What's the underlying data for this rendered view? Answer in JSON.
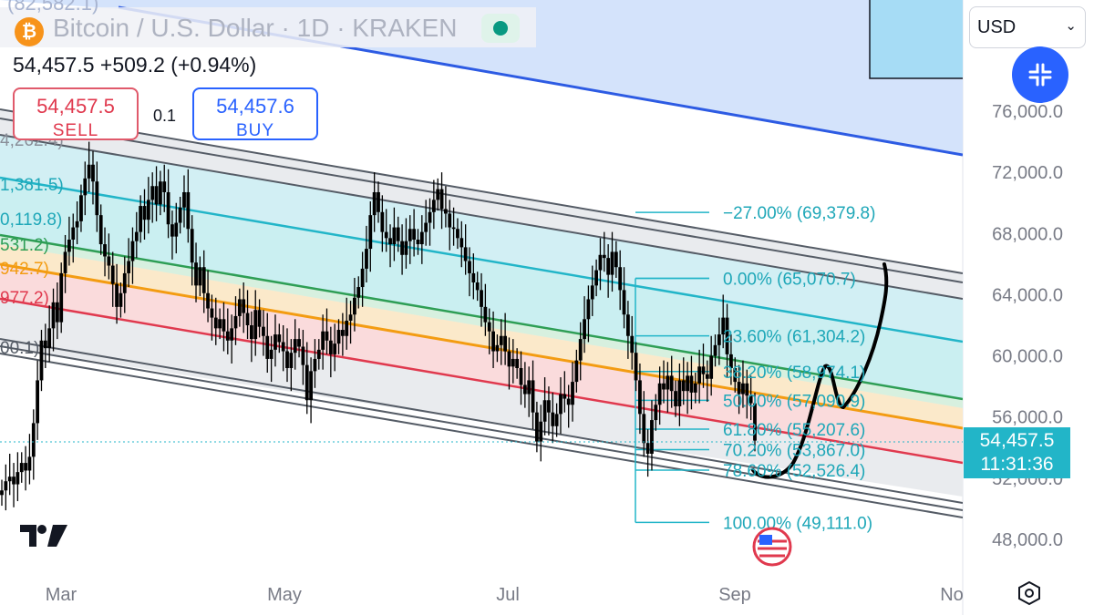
{
  "header": {
    "top_clipped": "(82,582.1)",
    "coin_glyph": "₿",
    "title": "Bitcoin / U.S. Dollar · 1D · KRAKEN",
    "quote": "54,457.5 +509.2 (+0.94%)"
  },
  "trade": {
    "sell_price": "54,457.5",
    "sell_label": "SELL",
    "buy_price": "54,457.6",
    "buy_label": "BUY",
    "spread": "0.1"
  },
  "toolbar": {
    "currency": "USD",
    "chevron": "⌄"
  },
  "colors": {
    "accent": "#2962ff",
    "teal": "#22b5c8",
    "sell": "#e0394e"
  },
  "chart_data": {
    "type": "candlestick",
    "symbol": "BTCUSD",
    "x_tick_labels": [
      "Mar",
      "May",
      "Jul",
      "Sep",
      "No"
    ],
    "y_ticks": [
      76000,
      72000,
      68000,
      64000,
      60000,
      56000,
      52000,
      48000
    ],
    "y_tick_labels": [
      "76,000.0",
      "72,000.0",
      "68,000.0",
      "64,000.0",
      "60,000.0",
      "56,000.0",
      "52,000.0",
      "48,000.0"
    ],
    "ylim": [
      46000,
      85000
    ],
    "last_price": "54,457.5",
    "countdown": "11:31:36",
    "fib_levels": [
      {
        "label": "−27.00% (69,379.8)",
        "pct": -0.27,
        "price": 69379.8
      },
      {
        "label": "0.00% (65,070.7)",
        "pct": 0.0,
        "price": 65070.7
      },
      {
        "label": "23.60% (61,304.2)",
        "pct": 0.236,
        "price": 61304.2
      },
      {
        "label": "38.20% (58,974.1)",
        "pct": 0.382,
        "price": 58974.1
      },
      {
        "label": "50.00% (57,090.9)",
        "pct": 0.5,
        "price": 57090.9
      },
      {
        "label": "61.80% (55,207.6)",
        "pct": 0.618,
        "price": 55207.6
      },
      {
        "label": "70.20% (53,867.0)",
        "pct": 0.702,
        "price": 53867.0
      },
      {
        "label": "78.60% (52,526.4)",
        "pct": 0.786,
        "price": 52526.4
      },
      {
        "label": "100.00% (49,111.0)",
        "pct": 1.0,
        "price": 49111.0
      }
    ],
    "left_clipped_labels": [
      "4,262.4)",
      "1,381.5)",
      "0,119.8)",
      "531.2)",
      "942.7)",
      "977.2)",
      "00.1)"
    ],
    "series": [
      {
        "closes": [
          51200,
          51800,
          52100,
          51600,
          52400,
          53000,
          52500,
          53400,
          55600,
          58400,
          61000,
          60500,
          61800,
          63500,
          62200,
          65400,
          66800,
          67600,
          68400,
          68800,
          70500,
          71600,
          72500,
          71400,
          69200,
          67300,
          66500,
          65900,
          64700,
          63200,
          64100,
          65400,
          66200,
          67500,
          68100,
          69800,
          68900,
          70200,
          71100,
          69900,
          71400,
          70700,
          68600,
          67800,
          68700,
          69700,
          70700,
          68300,
          66100,
          64600,
          65800,
          64100,
          63100,
          62500,
          61800,
          62400,
          61600,
          61000,
          61800,
          62600,
          63700,
          62800,
          62000,
          61100,
          63000,
          61900,
          61300,
          59800,
          60400,
          61400,
          60900,
          60300,
          59200,
          60200,
          61100,
          60600,
          59400,
          57100,
          59000,
          59800,
          60400,
          61600,
          61000,
          60100,
          60800,
          61700,
          61300,
          62300,
          62700,
          63800,
          64500,
          65700,
          67000,
          69200,
          70700,
          69400,
          68100,
          67700,
          67300,
          68400,
          67500,
          66600,
          67500,
          68300,
          67600,
          67300,
          68100,
          68700,
          69400,
          70200,
          70900,
          69600,
          69300,
          68400,
          68300,
          67700,
          67100,
          66200,
          65400,
          64800,
          64300,
          63200,
          62200,
          61600,
          60300,
          60700,
          61300,
          60300,
          59300,
          59800,
          59200,
          58100,
          57500,
          58400,
          56300,
          54400,
          55700,
          57100,
          56300,
          55400,
          56200,
          57500,
          57200,
          56800,
          58300,
          59700,
          61100,
          62400,
          63700,
          64600,
          65600,
          66600,
          66400,
          65300,
          66800,
          65800,
          64300,
          62700,
          61300,
          60200,
          58400,
          56200,
          54300,
          53600,
          55800,
          56800,
          58200,
          57800,
          58700,
          57700,
          56700,
          58400,
          57700,
          58700,
          57600,
          58200,
          59300,
          58800,
          58500,
          60000,
          60700,
          61400,
          62500,
          60100,
          59200,
          58300,
          57500,
          58200,
          57400,
          56900,
          54457
        ]
      }
    ]
  }
}
